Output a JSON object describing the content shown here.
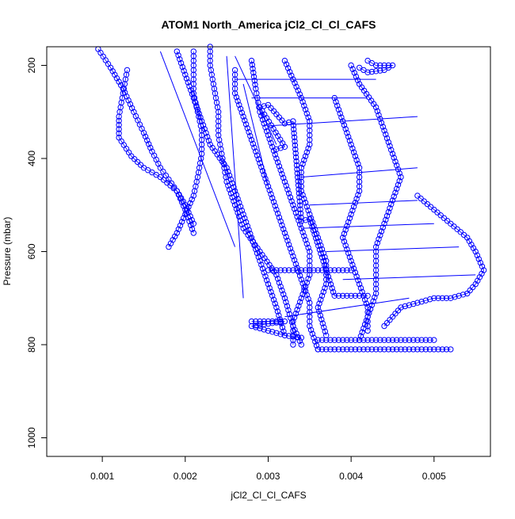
{
  "chart_data": {
    "type": "scatter",
    "title": "ATOM1 North_America jCl2_Cl_Cl_CAFS",
    "xlabel": "jCl2_Cl_Cl_CAFS",
    "ylabel": "Pressure (mbar)",
    "xlim": [
      0.00033,
      0.00568
    ],
    "ylim": [
      1040,
      160
    ],
    "y_reversed": true,
    "x_ticks": [
      0.001,
      0.002,
      0.003,
      0.004,
      0.005
    ],
    "x_tick_labels": [
      "0.001",
      "0.002",
      "0.003",
      "0.004",
      "0.005"
    ],
    "y_ticks": [
      200,
      400,
      600,
      800,
      1000
    ],
    "y_tick_labels": [
      "200",
      "400",
      "600",
      "800",
      "1000"
    ],
    "grid": false,
    "legend": "none",
    "marker": "open-circle",
    "color": "#0000ff",
    "series": [
      {
        "points": [
          [
            0.00095,
            165
          ],
          [
            0.0011,
            205
          ],
          [
            0.00125,
            250
          ],
          [
            0.00138,
            300
          ],
          [
            0.0015,
            345
          ],
          [
            0.0016,
            385
          ],
          [
            0.0017,
            420
          ],
          [
            0.0018,
            445
          ],
          [
            0.0019,
            470
          ],
          [
            0.002,
            500
          ],
          [
            0.0021,
            540
          ]
        ]
      },
      {
        "points": [
          [
            0.0013,
            210
          ],
          [
            0.00125,
            260
          ],
          [
            0.0012,
            310
          ],
          [
            0.0012,
            355
          ],
          [
            0.00135,
            395
          ],
          [
            0.0015,
            420
          ],
          [
            0.0017,
            440
          ],
          [
            0.0019,
            470
          ],
          [
            0.002,
            510
          ],
          [
            0.0021,
            560
          ]
        ]
      },
      {
        "points": [
          [
            0.0021,
            170
          ],
          [
            0.0021,
            210
          ],
          [
            0.0021,
            260
          ],
          [
            0.00215,
            300
          ],
          [
            0.0022,
            340
          ],
          [
            0.0022,
            390
          ],
          [
            0.00215,
            440
          ],
          [
            0.0021,
            480
          ],
          [
            0.002,
            520
          ],
          [
            0.0019,
            560
          ],
          [
            0.0018,
            590
          ]
        ]
      },
      {
        "points": [
          [
            0.0023,
            160
          ],
          [
            0.0023,
            200
          ],
          [
            0.00235,
            250
          ],
          [
            0.0024,
            300
          ],
          [
            0.0024,
            350
          ],
          [
            0.00245,
            400
          ],
          [
            0.0025,
            450
          ],
          [
            0.0026,
            500
          ],
          [
            0.0027,
            550
          ],
          [
            0.0029,
            600
          ],
          [
            0.0031,
            650
          ],
          [
            0.0032,
            700
          ],
          [
            0.0033,
            760
          ],
          [
            0.0034,
            800
          ]
        ]
      },
      {
        "points": [
          [
            0.0019,
            170
          ],
          [
            0.002,
            220
          ],
          [
            0.0021,
            270
          ],
          [
            0.0022,
            320
          ],
          [
            0.0023,
            370
          ],
          [
            0.0025,
            420
          ],
          [
            0.0026,
            470
          ],
          [
            0.0027,
            520
          ],
          [
            0.0028,
            570
          ],
          [
            0.0029,
            620
          ],
          [
            0.003,
            670
          ],
          [
            0.0031,
            720
          ],
          [
            0.0032,
            780
          ]
        ]
      },
      {
        "points": [
          [
            0.0026,
            210
          ],
          [
            0.0026,
            260
          ],
          [
            0.0027,
            310
          ],
          [
            0.0028,
            360
          ],
          [
            0.0029,
            410
          ],
          [
            0.003,
            460
          ],
          [
            0.0031,
            510
          ],
          [
            0.0032,
            560
          ],
          [
            0.0033,
            610
          ],
          [
            0.0034,
            660
          ],
          [
            0.0035,
            710
          ],
          [
            0.0035,
            760
          ],
          [
            0.0036,
            810
          ]
        ]
      },
      {
        "points": [
          [
            0.0028,
            190
          ],
          [
            0.00285,
            250
          ],
          [
            0.0029,
            300
          ],
          [
            0.003,
            350
          ],
          [
            0.0031,
            400
          ],
          [
            0.0032,
            450
          ],
          [
            0.0033,
            500
          ],
          [
            0.0034,
            550
          ],
          [
            0.0035,
            600
          ],
          [
            0.0035,
            650
          ],
          [
            0.0034,
            700
          ],
          [
            0.0033,
            750
          ],
          [
            0.0033,
            800
          ]
        ]
      },
      {
        "points": [
          [
            0.0032,
            190
          ],
          [
            0.0033,
            230
          ],
          [
            0.0034,
            270
          ],
          [
            0.0035,
            320
          ],
          [
            0.0035,
            370
          ],
          [
            0.0034,
            420
          ],
          [
            0.0034,
            470
          ],
          [
            0.0035,
            520
          ],
          [
            0.0036,
            570
          ],
          [
            0.0037,
            620
          ],
          [
            0.0037,
            670
          ],
          [
            0.0036,
            720
          ],
          [
            0.0037,
            780
          ]
        ]
      },
      {
        "points": [
          [
            0.0038,
            270
          ],
          [
            0.0039,
            320
          ],
          [
            0.004,
            370
          ],
          [
            0.0041,
            420
          ],
          [
            0.0041,
            470
          ],
          [
            0.004,
            520
          ],
          [
            0.0039,
            570
          ],
          [
            0.004,
            620
          ],
          [
            0.0041,
            670
          ],
          [
            0.0042,
            720
          ],
          [
            0.0042,
            770
          ]
        ]
      },
      {
        "points": [
          [
            0.004,
            200
          ],
          [
            0.0041,
            240
          ],
          [
            0.0043,
            290
          ],
          [
            0.0044,
            340
          ],
          [
            0.0045,
            390
          ],
          [
            0.0046,
            440
          ],
          [
            0.0045,
            490
          ],
          [
            0.0044,
            540
          ],
          [
            0.0043,
            590
          ],
          [
            0.0043,
            640
          ],
          [
            0.0043,
            690
          ],
          [
            0.0042,
            740
          ],
          [
            0.0041,
            790
          ]
        ]
      },
      {
        "points": [
          [
            0.0048,
            480
          ],
          [
            0.005,
            510
          ],
          [
            0.0052,
            540
          ],
          [
            0.0054,
            570
          ],
          [
            0.0055,
            600
          ],
          [
            0.0056,
            640
          ],
          [
            0.0055,
            670
          ],
          [
            0.0054,
            690
          ],
          [
            0.0052,
            700
          ],
          [
            0.005,
            700
          ],
          [
            0.0048,
            710
          ],
          [
            0.0046,
            720
          ],
          [
            0.0045,
            740
          ],
          [
            0.0044,
            760
          ]
        ]
      },
      {
        "points": [
          [
            0.0042,
            190
          ],
          [
            0.0043,
            200
          ],
          [
            0.0045,
            200
          ],
          [
            0.0044,
            210
          ],
          [
            0.0042,
            215
          ],
          [
            0.0041,
            205
          ]
        ]
      },
      {
        "points": [
          [
            0.003,
            640
          ],
          [
            0.0032,
            640
          ],
          [
            0.0034,
            640
          ],
          [
            0.0036,
            640
          ],
          [
            0.0038,
            640
          ],
          [
            0.004,
            640
          ]
        ]
      },
      {
        "points": [
          [
            0.0036,
            810
          ],
          [
            0.0038,
            810
          ],
          [
            0.004,
            810
          ],
          [
            0.0042,
            810
          ],
          [
            0.0044,
            810
          ],
          [
            0.0046,
            810
          ],
          [
            0.0048,
            810
          ],
          [
            0.005,
            810
          ],
          [
            0.0052,
            810
          ]
        ]
      },
      {
        "points": [
          [
            0.0036,
            790
          ],
          [
            0.0038,
            790
          ],
          [
            0.004,
            790
          ],
          [
            0.0042,
            790
          ],
          [
            0.0044,
            790
          ],
          [
            0.0046,
            790
          ],
          [
            0.0048,
            790
          ],
          [
            0.005,
            790
          ]
        ]
      },
      {
        "points": [
          [
            0.0028,
            750
          ],
          [
            0.003,
            750
          ],
          [
            0.0032,
            750
          ],
          [
            0.0028,
            760
          ],
          [
            0.003,
            770
          ],
          [
            0.0032,
            780
          ],
          [
            0.0034,
            785
          ]
        ]
      },
      {
        "points": [
          [
            0.0031,
            380
          ],
          [
            0.0032,
            375
          ],
          [
            0.0029,
            290
          ],
          [
            0.003,
            285
          ],
          [
            0.0032,
            325
          ],
          [
            0.0033,
            320
          ],
          [
            0.0034,
            535
          ],
          [
            0.0035,
            530
          ],
          [
            0.0038,
            695
          ],
          [
            0.004,
            695
          ],
          [
            0.0042,
            695
          ]
        ]
      }
    ],
    "connecting_lines": [
      [
        [
          0.0026,
          230
        ],
        [
          0.0043,
          230
        ]
      ],
      [
        [
          0.003,
          330
        ],
        [
          0.0048,
          310
        ]
      ],
      [
        [
          0.0035,
          500
        ],
        [
          0.0048,
          490
        ]
      ],
      [
        [
          0.0034,
          550
        ],
        [
          0.005,
          540
        ]
      ],
      [
        [
          0.0037,
          600
        ],
        [
          0.0053,
          590
        ]
      ],
      [
        [
          0.0039,
          660
        ],
        [
          0.0055,
          650
        ]
      ],
      [
        [
          0.0026,
          180
        ],
        [
          0.0031,
          370
        ]
      ],
      [
        [
          0.0027,
          240
        ],
        [
          0.003,
          460
        ]
      ],
      [
        [
          0.0025,
          180
        ],
        [
          0.0027,
          700
        ]
      ],
      [
        [
          0.0017,
          170
        ],
        [
          0.0026,
          590
        ]
      ],
      [
        [
          0.0028,
          270
        ],
        [
          0.0042,
          270
        ]
      ],
      [
        [
          0.0034,
          440
        ],
        [
          0.0048,
          420
        ]
      ],
      [
        [
          0.0032,
          740
        ],
        [
          0.0047,
          700
        ]
      ]
    ]
  }
}
